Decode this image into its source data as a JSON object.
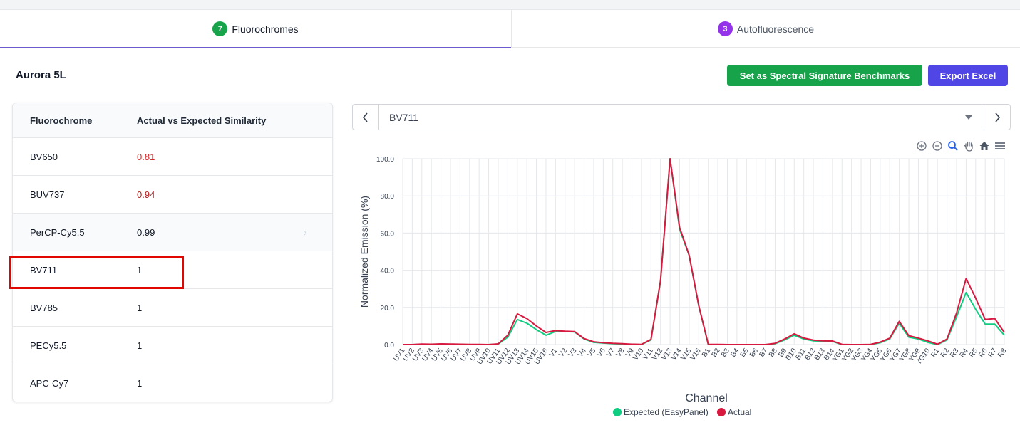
{
  "tabs": [
    {
      "count": "7",
      "label": "Fluorochromes"
    },
    {
      "count": "3",
      "label": "Autofluorescence"
    }
  ],
  "instrument": "Aurora 5L",
  "buttons": {
    "benchmark": "Set as Spectral Signature Benchmarks",
    "export": "Export Excel"
  },
  "table": {
    "headers": [
      "Fluorochrome",
      "Actual vs Expected Similarity"
    ],
    "rows": [
      {
        "name": "BV650",
        "value": "0.81",
        "color": "#dc2626"
      },
      {
        "name": "BUV737",
        "value": "0.94",
        "color": "#b91c1c"
      },
      {
        "name": "PerCP-Cy5.5",
        "value": "0.99",
        "color": "#111827"
      },
      {
        "name": "BV711",
        "value": "1",
        "color": "#111827"
      },
      {
        "name": "BV785",
        "value": "1",
        "color": "#111827"
      },
      {
        "name": "PECy5.5",
        "value": "1",
        "color": "#111827"
      },
      {
        "name": "APC-Cy7",
        "value": "1",
        "color": "#111827"
      }
    ]
  },
  "selector": {
    "value": "BV711"
  },
  "colors": {
    "expected": "#10cc80",
    "actual": "#d7193f"
  },
  "chart_data": {
    "type": "line",
    "xlabel": "Channel",
    "ylabel": "Normalized Emission (%)",
    "ylim": [
      0,
      100
    ],
    "yticks": [
      "0.0",
      "20.0",
      "40.0",
      "60.0",
      "80.0",
      "100.0"
    ],
    "grid": true,
    "legend_position": "bottom",
    "x": [
      "UV1",
      "UV2",
      "UV3",
      "UV4",
      "UV5",
      "UV6",
      "UV7",
      "UV8",
      "UV9",
      "UV10",
      "UV11",
      "UV12",
      "UV13",
      "UV14",
      "UV15",
      "UV16",
      "V1",
      "V2",
      "V3",
      "V4",
      "V5",
      "V6",
      "V7",
      "V8",
      "V9",
      "V10",
      "V11",
      "V12",
      "V13",
      "V14",
      "V15",
      "V16",
      "B1",
      "B2",
      "B3",
      "B4",
      "B5",
      "B6",
      "B7",
      "B8",
      "B9",
      "B10",
      "B11",
      "B12",
      "B13",
      "B14",
      "YG1",
      "YG2",
      "YG3",
      "YG4",
      "YG5",
      "YG6",
      "YG7",
      "YG8",
      "YG9",
      "YG10",
      "R1",
      "R2",
      "R3",
      "R4",
      "R5",
      "R6",
      "R7",
      "R8"
    ],
    "series": [
      {
        "name": "Expected (EasyPanel)",
        "values": [
          0,
          0,
          0.2,
          0.1,
          0.3,
          0.2,
          0.1,
          0,
          0,
          0,
          0.3,
          4,
          13.5,
          11.5,
          8,
          5,
          7,
          7,
          6.8,
          3,
          1.2,
          0.8,
          0.5,
          0.3,
          0.1,
          0,
          2.5,
          34,
          100,
          62,
          48,
          21,
          0,
          0,
          0,
          0,
          0,
          0,
          0,
          0.5,
          2.5,
          5,
          3,
          2,
          1.8,
          1.7,
          0,
          0,
          0,
          0,
          1,
          3,
          11.5,
          4,
          3,
          1.2,
          0,
          2.5,
          15,
          28,
          19,
          11,
          11,
          5
        ]
      },
      {
        "name": "Actual",
        "values": [
          0,
          0,
          0.3,
          0.2,
          0.4,
          0.3,
          0.2,
          0.1,
          0.1,
          0,
          0.4,
          5,
          16.5,
          14,
          10,
          6.5,
          7.5,
          7.2,
          7,
          3.2,
          1.5,
          1,
          0.7,
          0.5,
          0.2,
          0.1,
          2.8,
          34.5,
          100,
          63,
          48,
          21,
          0.1,
          0.1,
          0,
          0,
          0,
          0,
          0,
          0.7,
          3,
          5.8,
          3.5,
          2.4,
          2,
          1.9,
          0.1,
          0,
          0,
          0.1,
          1.3,
          3.4,
          12.5,
          4.8,
          3.5,
          2,
          0.2,
          3,
          17,
          35.5,
          25,
          13.5,
          14,
          6.5
        ]
      }
    ]
  }
}
